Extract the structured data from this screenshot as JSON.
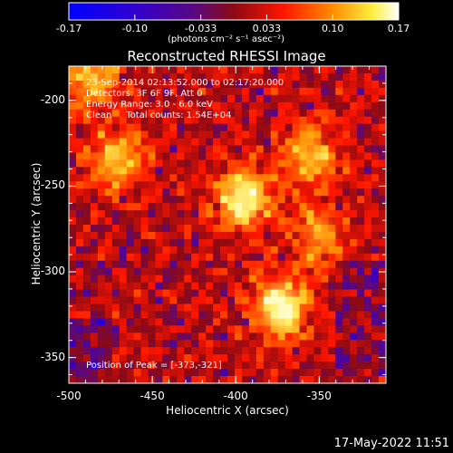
{
  "colorbar": {
    "ticks": [
      "-0.17",
      "-0.10",
      "-0.033",
      "0.033",
      "0.10",
      "0.17"
    ],
    "units": "(photons cm⁻² s⁻¹ asec⁻²)"
  },
  "title": "Reconstructed RHESSI Image",
  "info_lines": [
    "23-Sep-2014 02:13:52.000 to 02:17:20.000",
    "Detectors: 3F 6F 9F, Att 0",
    "Energy Range: 3.0 - 6.0 keV",
    "Clean     Total counts: 1.54E+04"
  ],
  "peak_text": "Position of Peak = [-373,-321]",
  "timestamp": "17-May-2022 11:51",
  "chart_data": {
    "type": "heatmap",
    "xlabel": "Heliocentric X (arcsec)",
    "ylabel": "Heliocentric Y (arcsec)",
    "xlim": [
      -500,
      -310
    ],
    "ylim": [
      -365,
      -180
    ],
    "x_ticks": [
      -500,
      -450,
      -400,
      -350
    ],
    "y_ticks": [
      -200,
      -250,
      -300,
      -350
    ],
    "colorbar_range": [
      -0.17,
      0.17
    ],
    "peak": [
      -373,
      -321
    ],
    "bright_regions": [
      {
        "x": -395,
        "y": -258,
        "relative_intensity": 0.95
      },
      {
        "x": -373,
        "y": -321,
        "relative_intensity": 1.0
      },
      {
        "x": -472,
        "y": -235,
        "relative_intensity": 0.8
      },
      {
        "x": -487,
        "y": -188,
        "relative_intensity": 0.75
      },
      {
        "x": -355,
        "y": -232,
        "relative_intensity": 0.7
      },
      {
        "x": -350,
        "y": -278,
        "relative_intensity": 0.6
      }
    ],
    "colormap_colors": [
      "#0000ff",
      "#5b00a6",
      "#8c0a14",
      "#ff0000",
      "#ff8c00",
      "#ffff7a",
      "#ffffff"
    ]
  }
}
